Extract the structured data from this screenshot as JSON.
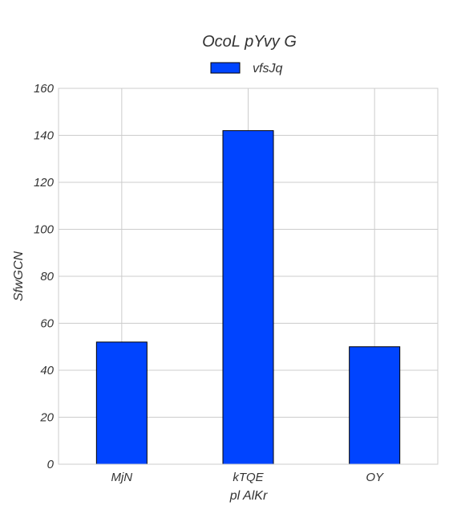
{
  "chart_data": {
    "type": "bar",
    "title": "OcoL pYvy G",
    "xlabel": "pl  AlKr",
    "ylabel": "SfwGCN",
    "categories": [
      "MjN",
      "kTQE",
      "OY"
    ],
    "series": [
      {
        "name": "vfsJq",
        "values": [
          52,
          142,
          50
        ],
        "color": "#0044ff"
      }
    ],
    "ylim": [
      0,
      160
    ],
    "yticks": [
      0,
      20,
      40,
      60,
      80,
      100,
      120,
      140,
      160
    ],
    "grid": true,
    "legend": "top-center"
  }
}
